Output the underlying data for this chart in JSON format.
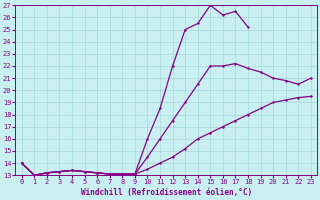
{
  "xlabel": "Windchill (Refroidissement éolien,°C)",
  "background_color": "#c8f0f0",
  "grid_color": "#a8d8d8",
  "line_color": "#880088",
  "xlim_min": -0.5,
  "xlim_max": 23.5,
  "ylim_min": 13,
  "ylim_max": 27,
  "xticks": [
    0,
    1,
    2,
    3,
    4,
    5,
    6,
    7,
    8,
    9,
    10,
    11,
    12,
    13,
    14,
    15,
    16,
    17,
    18,
    19,
    20,
    21,
    22,
    23
  ],
  "yticks": [
    13,
    14,
    15,
    16,
    17,
    18,
    19,
    20,
    21,
    22,
    23,
    24,
    25,
    26,
    27
  ],
  "line1_x": [
    0,
    1,
    2,
    3,
    4,
    5,
    6,
    7,
    8,
    9,
    10,
    11,
    12,
    13,
    14,
    15,
    16,
    17,
    18,
    19,
    20,
    21,
    22,
    23
  ],
  "line1_y": [
    14.0,
    13.0,
    13.2,
    13.3,
    13.4,
    13.3,
    13.2,
    13.1,
    13.1,
    13.1,
    13.5,
    14.0,
    14.5,
    15.2,
    16.0,
    16.5,
    17.0,
    17.5,
    18.0,
    18.5,
    19.0,
    19.2,
    19.4,
    19.5
  ],
  "line2_x": [
    0,
    1,
    2,
    3,
    4,
    5,
    6,
    7,
    8,
    9,
    10,
    11,
    12,
    13,
    14,
    15,
    16,
    17,
    18,
    19,
    20,
    21,
    22,
    23
  ],
  "line2_y": [
    14.0,
    13.0,
    13.2,
    13.3,
    13.4,
    13.3,
    13.2,
    13.1,
    13.1,
    13.1,
    14.5,
    16.0,
    17.5,
    19.0,
    20.5,
    22.0,
    22.0,
    22.2,
    21.8,
    21.5,
    21.0,
    20.8,
    20.5,
    21.0
  ],
  "line3_x": [
    0,
    1,
    2,
    3,
    4,
    5,
    6,
    7,
    8,
    9,
    10,
    11,
    12,
    13,
    14,
    15,
    16,
    17,
    18,
    19,
    20,
    21,
    22,
    23
  ],
  "line3_y": [
    14.0,
    13.0,
    13.2,
    13.3,
    13.4,
    13.3,
    13.2,
    13.1,
    13.1,
    13.1,
    16.0,
    18.5,
    22.0,
    25.0,
    25.5,
    27.0,
    26.2,
    26.5,
    25.2,
    null,
    null,
    null,
    null,
    null
  ]
}
